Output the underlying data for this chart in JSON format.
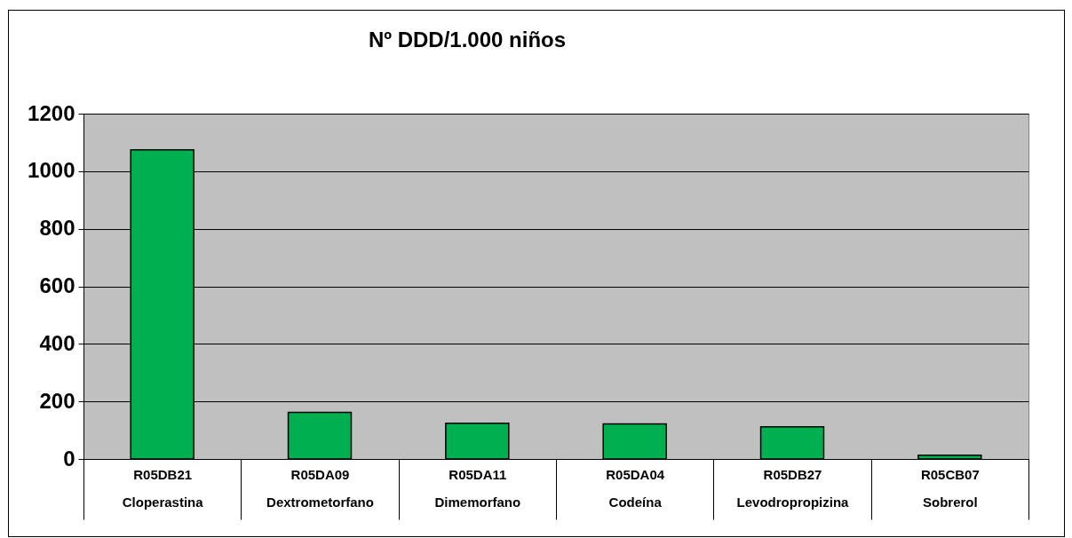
{
  "chart_data": {
    "type": "bar",
    "title": "Nº DDD/1.000 niños",
    "categories": [
      "R05DB21\nCloperastina",
      "R05DA09\nDextrometorfano",
      "R05DA11\nDimemorfano",
      "R05DA04\nCodeína",
      "R05DB27\nLevodropropizina",
      "R05CB07\nSobrerol"
    ],
    "values": [
      1074,
      162,
      124,
      122,
      112,
      13
    ],
    "color": "#00b050",
    "ylim": [
      0,
      1200
    ],
    "yticks": [
      0,
      200,
      400,
      600,
      800,
      1000,
      1200
    ],
    "grid": "y"
  }
}
